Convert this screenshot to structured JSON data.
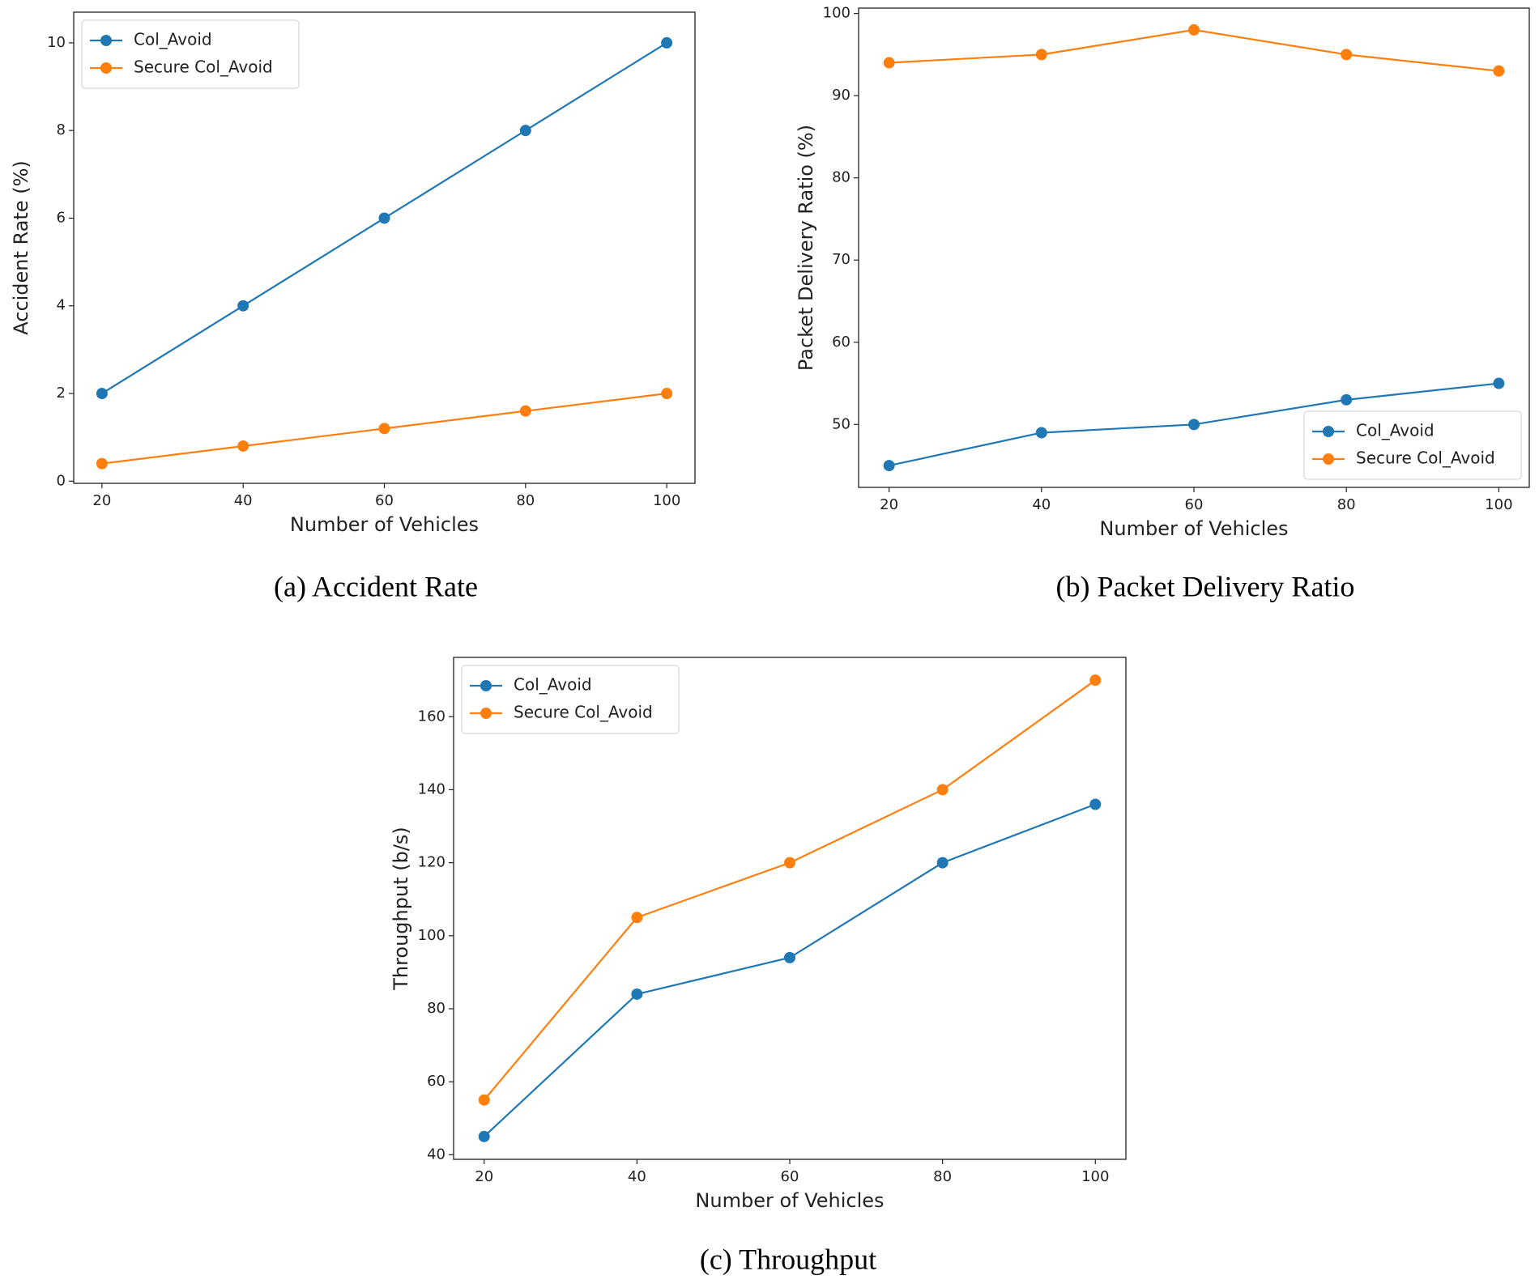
{
  "chart_data": [
    {
      "type": "line",
      "caption": "(a) Accident Rate",
      "xlabel": "Number of Vehicles",
      "ylabel": "Accident Rate (%)",
      "x": [
        20,
        40,
        60,
        80,
        100
      ],
      "series": [
        {
          "name": "Col_Avoid",
          "color": "#1f77b4",
          "values": [
            2,
            4,
            6,
            8,
            10
          ]
        },
        {
          "name": "Secure Col_Avoid",
          "color": "#ff7f0e",
          "values": [
            0.4,
            0.8,
            1.2,
            1.6,
            2
          ]
        }
      ],
      "xlim": [
        16,
        104
      ],
      "ylim": [
        -0.05,
        10.7
      ],
      "xticks": [
        20,
        40,
        60,
        80,
        100
      ],
      "yticks": [
        0,
        2,
        4,
        6,
        8,
        10
      ],
      "legend": "upper left"
    },
    {
      "type": "line",
      "caption": "(b) Packet Delivery Ratio",
      "xlabel": "Number of Vehicles",
      "ylabel": "Packet Delivery Ratio (%)",
      "x": [
        20,
        40,
        60,
        80,
        100
      ],
      "series": [
        {
          "name": "Col_Avoid",
          "color": "#1f77b4",
          "values": [
            45,
            49,
            50,
            53,
            55
          ]
        },
        {
          "name": "Secure Col_Avoid",
          "color": "#ff7f0e",
          "values": [
            94,
            95,
            98,
            95,
            93
          ]
        }
      ],
      "xlim": [
        16,
        104
      ],
      "ylim": [
        42.35,
        100.65
      ],
      "xticks": [
        20,
        40,
        60,
        80,
        100
      ],
      "yticks": [
        50,
        60,
        70,
        80,
        90,
        100
      ],
      "legend": "lower right"
    },
    {
      "type": "line",
      "caption": "(c) Throughput",
      "xlabel": "Number of Vehicles",
      "ylabel": "Throughput (b/s)",
      "x": [
        20,
        40,
        60,
        80,
        100
      ],
      "series": [
        {
          "name": "Col_Avoid",
          "color": "#1f77b4",
          "values": [
            45,
            84,
            94,
            120,
            136
          ]
        },
        {
          "name": "Secure Col_Avoid",
          "color": "#ff7f0e",
          "values": [
            55,
            105,
            120,
            140,
            170
          ]
        }
      ],
      "xlim": [
        16,
        104
      ],
      "ylim": [
        38.75,
        176.25
      ],
      "xticks": [
        20,
        40,
        60,
        80,
        100
      ],
      "yticks": [
        40,
        60,
        80,
        100,
        120,
        140,
        160
      ],
      "legend": "upper left"
    }
  ]
}
